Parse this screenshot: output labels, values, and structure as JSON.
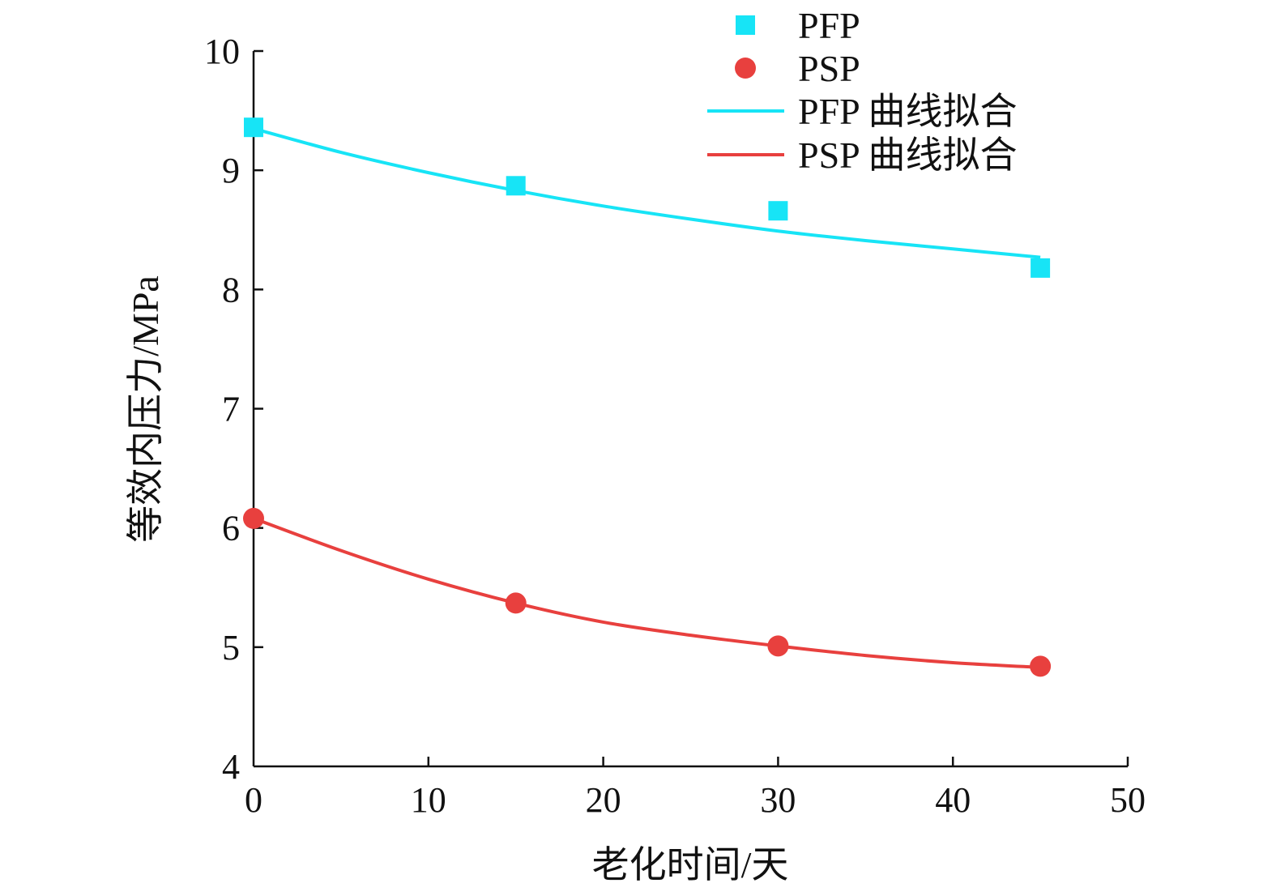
{
  "chart_data": {
    "type": "scatter",
    "xlabel": "老化时间/天",
    "ylabel": "等效内压力/MPa",
    "xlim": [
      0,
      50
    ],
    "ylim": [
      4,
      10
    ],
    "xticks": [
      0,
      10,
      20,
      30,
      40,
      50
    ],
    "yticks": [
      4,
      5,
      6,
      7,
      8,
      9,
      10
    ],
    "grid": false,
    "legend_position": "top-right",
    "series": [
      {
        "name": "PFP",
        "kind": "points",
        "marker": "square",
        "color": "#17e4f6",
        "x": [
          0,
          15,
          30,
          45
        ],
        "y": [
          9.36,
          8.87,
          8.66,
          8.18
        ]
      },
      {
        "name": "PSP",
        "kind": "points",
        "marker": "circle",
        "color": "#e8403e",
        "x": [
          0,
          15,
          30,
          45
        ],
        "y": [
          6.08,
          5.37,
          5.01,
          4.84
        ]
      },
      {
        "name": "PFP 曲线拟合",
        "kind": "line",
        "color": "#17e4f6",
        "x": [
          0,
          5,
          10,
          15,
          20,
          25,
          30,
          35,
          40,
          45
        ],
        "y": [
          9.35,
          9.15,
          8.98,
          8.83,
          8.7,
          8.59,
          8.49,
          8.41,
          8.34,
          8.27
        ]
      },
      {
        "name": "PSP 曲线拟合",
        "kind": "line",
        "color": "#e8403e",
        "x": [
          0,
          5,
          10,
          15,
          20,
          25,
          30,
          35,
          40,
          45
        ],
        "y": [
          6.08,
          5.81,
          5.57,
          5.37,
          5.21,
          5.1,
          5.01,
          4.93,
          4.87,
          4.83
        ]
      }
    ]
  }
}
